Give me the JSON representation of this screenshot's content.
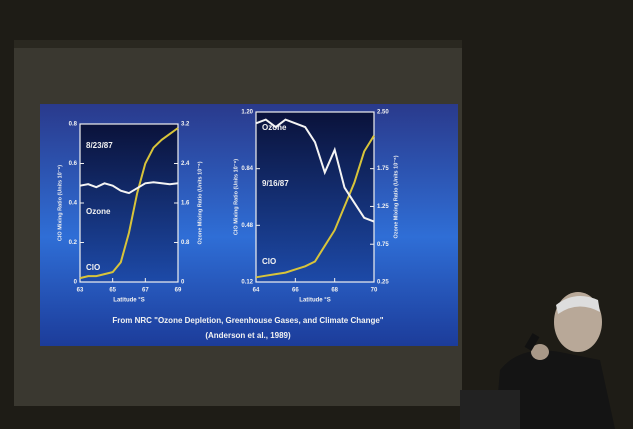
{
  "chart_data": [
    {
      "type": "line",
      "annotation": "8/23/87",
      "xlabel": "Latitude °S",
      "ylabel": "ClO Mixing Ratio (Units 10⁻⁹)",
      "y2label": "Ozone Mixing Ratio (Units 10⁻⁶)",
      "x": [
        63,
        63.5,
        64,
        64.5,
        65,
        65.5,
        66,
        66.5,
        67,
        67.5,
        68,
        68.5,
        69
      ],
      "xlim": [
        63,
        69
      ],
      "xticks": [
        63,
        65,
        67,
        69
      ],
      "ylim": [
        0,
        0.8
      ],
      "yticks": [
        0,
        0.2,
        0.4,
        0.6,
        0.8
      ],
      "y2lim": [
        0,
        3.2
      ],
      "y2ticks": [
        0,
        0.8,
        1.6,
        2.4,
        3.2
      ],
      "series": [
        {
          "name": "ClO",
          "color": "#d8c43a",
          "values": [
            0.02,
            0.03,
            0.03,
            0.04,
            0.05,
            0.1,
            0.25,
            0.45,
            0.6,
            0.68,
            0.72,
            0.75,
            0.78
          ]
        },
        {
          "name": "Ozone",
          "color": "#f4f4f4",
          "axis": "y2",
          "values": [
            1.95,
            1.98,
            1.92,
            2.0,
            1.95,
            1.85,
            1.8,
            1.9,
            2.0,
            2.02,
            2.0,
            1.98,
            2.0
          ]
        }
      ]
    },
    {
      "type": "line",
      "annotation": "9/16/87",
      "xlabel": "Latitude °S",
      "ylabel": "ClO Mixing Ratio (Units 10⁻⁹)",
      "y2label": "Ozone Mixing Ratio (Units 10⁻⁶)",
      "x": [
        64,
        64.5,
        65,
        65.5,
        66,
        66.5,
        67,
        67.5,
        68,
        68.5,
        69,
        69.5,
        70
      ],
      "xlim": [
        64,
        70
      ],
      "xticks": [
        64,
        66,
        68,
        70
      ],
      "ylim": [
        0.12,
        1.2
      ],
      "yticks": [
        0.12,
        0.48,
        0.84,
        {
          "value": 1.2,
          "label": "1.20"
        }
      ],
      "y2lim": [
        0.25,
        2.5
      ],
      "y2ticks": [
        0.25,
        0.75,
        1.25,
        1.75,
        {
          "value": 2.5,
          "label": "2.50"
        }
      ],
      "series": [
        {
          "name": "ClO",
          "color": "#d8c43a",
          "values": [
            0.15,
            0.16,
            0.17,
            0.18,
            0.2,
            0.22,
            0.25,
            0.35,
            0.45,
            0.6,
            0.75,
            0.95,
            1.05
          ]
        },
        {
          "name": "Ozone",
          "color": "#f4f4f4",
          "axis": "y2",
          "values": [
            2.35,
            2.4,
            2.3,
            2.4,
            2.35,
            2.3,
            2.1,
            1.7,
            2.0,
            1.5,
            1.3,
            1.1,
            1.05
          ]
        }
      ]
    }
  ],
  "caption": [
    "From NRC \"Ozone Depletion, Greenhouse Gases, and Climate Change\"",
    "(Anderson et al., 1989)"
  ]
}
